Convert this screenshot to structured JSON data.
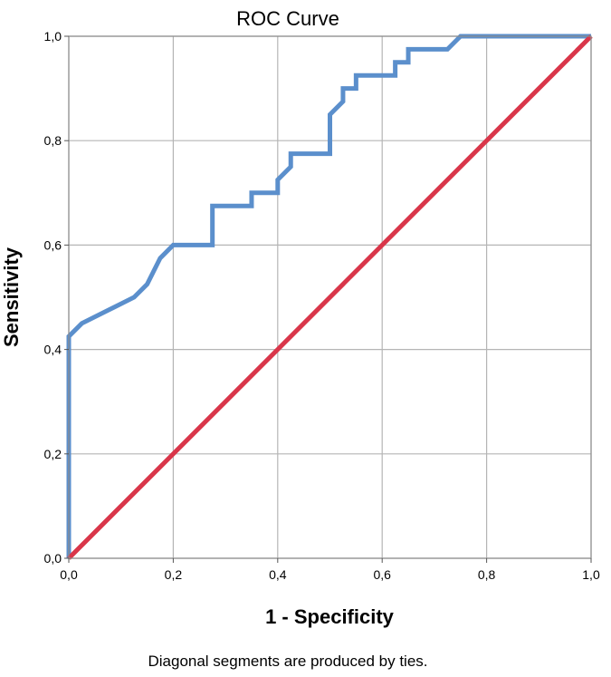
{
  "chart_data": {
    "type": "line",
    "title": "ROC Curve",
    "xlabel": "1 - Specificity",
    "ylabel": "Sensitivity",
    "footnote": "Diagonal segments are produced by ties.",
    "xlim": [
      0,
      1
    ],
    "ylim": [
      0,
      1
    ],
    "grid": true,
    "x_ticks": [
      "0,0",
      "0,2",
      "0,4",
      "0,6",
      "0,8",
      "1,0"
    ],
    "y_ticks": [
      "0,0",
      "0,2",
      "0,4",
      "0,6",
      "0,8",
      "1,0"
    ],
    "series": [
      {
        "color": "#5B8FCC",
        "x": [
          0.0,
          0.0,
          0.0,
          0.025,
          0.025,
          0.075,
          0.075,
          0.125,
          0.125,
          0.15,
          0.15,
          0.175,
          0.175,
          0.2,
          0.225,
          0.275,
          0.275,
          0.35,
          0.35,
          0.4,
          0.4,
          0.425,
          0.425,
          0.5,
          0.5,
          0.525,
          0.525,
          0.55,
          0.55,
          0.625,
          0.625,
          0.65,
          0.65,
          0.725,
          0.75,
          1.0
        ],
        "y": [
          0.0,
          0.425,
          0.425,
          0.45,
          0.45,
          0.475,
          0.475,
          0.5,
          0.5,
          0.525,
          0.525,
          0.575,
          0.575,
          0.6,
          0.6,
          0.6,
          0.675,
          0.675,
          0.7,
          0.7,
          0.725,
          0.75,
          0.775,
          0.775,
          0.85,
          0.875,
          0.9,
          0.9,
          0.925,
          0.925,
          0.95,
          0.95,
          0.975,
          0.975,
          1.0,
          1.0
        ]
      },
      {
        "color": "#D9364A",
        "x": [
          0.0,
          1.0
        ],
        "y": [
          0.0,
          1.0
        ]
      }
    ]
  }
}
